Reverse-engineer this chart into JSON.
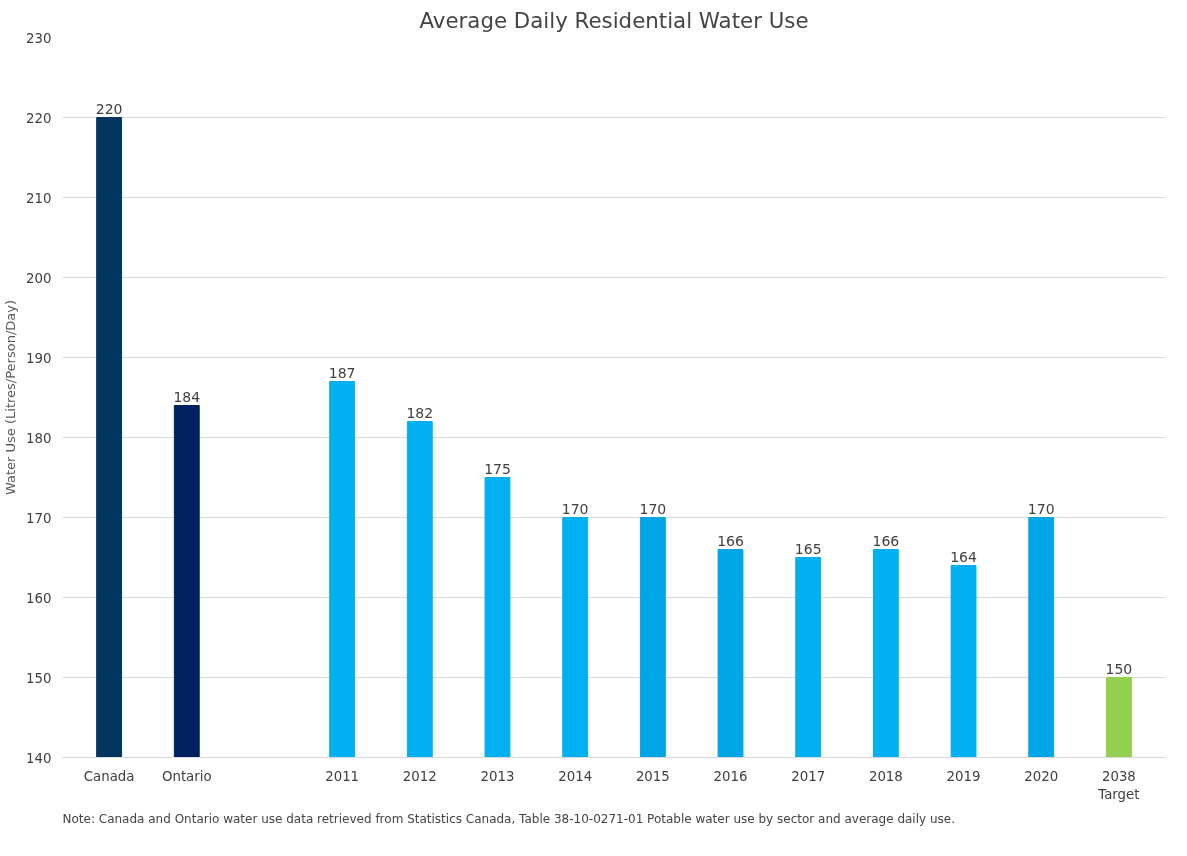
{
  "chart_data": {
    "type": "bar",
    "title": "Average Daily Residential Water Use",
    "ylabel": "Water Use (Litres/Person/Day)",
    "categories": [
      "Canada",
      "Ontario",
      null,
      "2011",
      "2012",
      "2013",
      "2014",
      "2015",
      "2016",
      "2017",
      "2018",
      "2019",
      "2020",
      "2038\nTarget"
    ],
    "values": [
      220,
      184,
      null,
      187,
      182,
      175,
      170,
      170,
      166,
      165,
      166,
      164,
      170,
      150
    ],
    "colors": [
      "#003660",
      "#002060",
      "#00b0f0",
      "#00b0f0",
      "#00b0f0",
      "#00b0f0",
      "#00b0f0",
      "#00a5e6",
      "#00a5e6",
      "#00b0f0",
      "#00b0f0",
      "#00b0f0",
      "#00a5e6",
      "#92d050"
    ],
    "ylim": [
      140,
      230
    ],
    "yticks": [
      140,
      150,
      160,
      170,
      180,
      190,
      200,
      210,
      220,
      230
    ],
    "grid": "y",
    "data_labels": true,
    "annotations": [
      "Note: Canada and Ontario water use data retrieved from Statistics Canada, Table 38-10-0271-01 Potable water use by sector and average daily use."
    ]
  }
}
